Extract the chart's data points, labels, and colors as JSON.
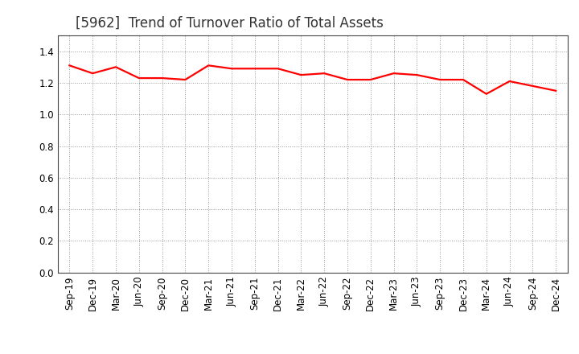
{
  "title": "[5962]  Trend of Turnover Ratio of Total Assets",
  "x_labels": [
    "Sep-19",
    "Dec-19",
    "Mar-20",
    "Jun-20",
    "Sep-20",
    "Dec-20",
    "Mar-21",
    "Jun-21",
    "Sep-21",
    "Dec-21",
    "Mar-22",
    "Jun-22",
    "Sep-22",
    "Dec-22",
    "Mar-23",
    "Jun-23",
    "Sep-23",
    "Dec-23",
    "Mar-24",
    "Jun-24",
    "Sep-24",
    "Dec-24"
  ],
  "values": [
    1.31,
    1.26,
    1.3,
    1.23,
    1.23,
    1.22,
    1.31,
    1.29,
    1.29,
    1.29,
    1.25,
    1.26,
    1.22,
    1.22,
    1.26,
    1.25,
    1.22,
    1.22,
    1.13,
    1.21,
    1.18,
    1.15
  ],
  "line_color": "#FF0000",
  "line_width": 1.6,
  "ylim": [
    0.0,
    1.5
  ],
  "yticks": [
    0.0,
    0.2,
    0.4,
    0.6,
    0.8,
    1.0,
    1.2,
    1.4
  ],
  "background_color": "#ffffff",
  "grid_color": "#999999",
  "title_fontsize": 12,
  "tick_fontsize": 8.5,
  "title_color": "#333333"
}
